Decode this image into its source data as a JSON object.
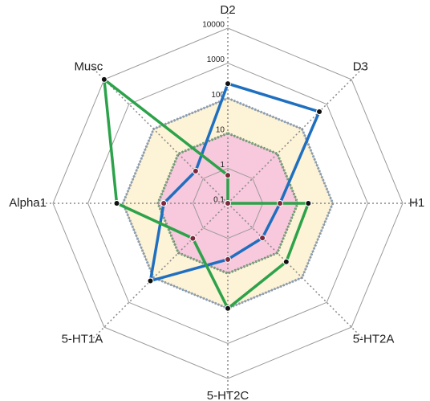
{
  "chart_data": {
    "type": "radar",
    "log_scale": true,
    "categories": [
      "D2",
      "D3",
      "H1",
      "5-HT2A",
      "5-HT2C",
      "5-HT1A",
      "Alpha1",
      "Musc"
    ],
    "rlim": [
      0.1,
      10000
    ],
    "rticks": [
      0.1,
      1,
      10,
      100,
      1000,
      10000
    ],
    "grid": true,
    "bands": [
      {
        "value": 100,
        "fill": "#fdf3d6",
        "stroke": "#7f9fbf"
      },
      {
        "value": 10,
        "fill": "#f8c8dc",
        "stroke": "#4f9a5a"
      }
    ],
    "series": [
      {
        "color": "#1f6fc0",
        "values": [
          260,
          500,
          3.1,
          2.5,
          4,
          135,
          6.8,
          2
        ],
        "marker_colors": [
          "#111",
          "#111",
          "#7a2a3a",
          "#7a2a3a",
          "#7a2a3a",
          "#111",
          "#7a2a3a",
          "#7a2a3a"
        ]
      },
      {
        "color": "#2ca24a",
        "values": [
          0.63,
          0.1,
          20,
          23,
          100,
          2.6,
          150,
          10000
        ],
        "marker_colors": [
          "#7a2a3a",
          "#7a2a3a",
          "#111",
          "#111",
          "#111",
          "#7a2a3a",
          "#111",
          "#111"
        ]
      }
    ]
  }
}
